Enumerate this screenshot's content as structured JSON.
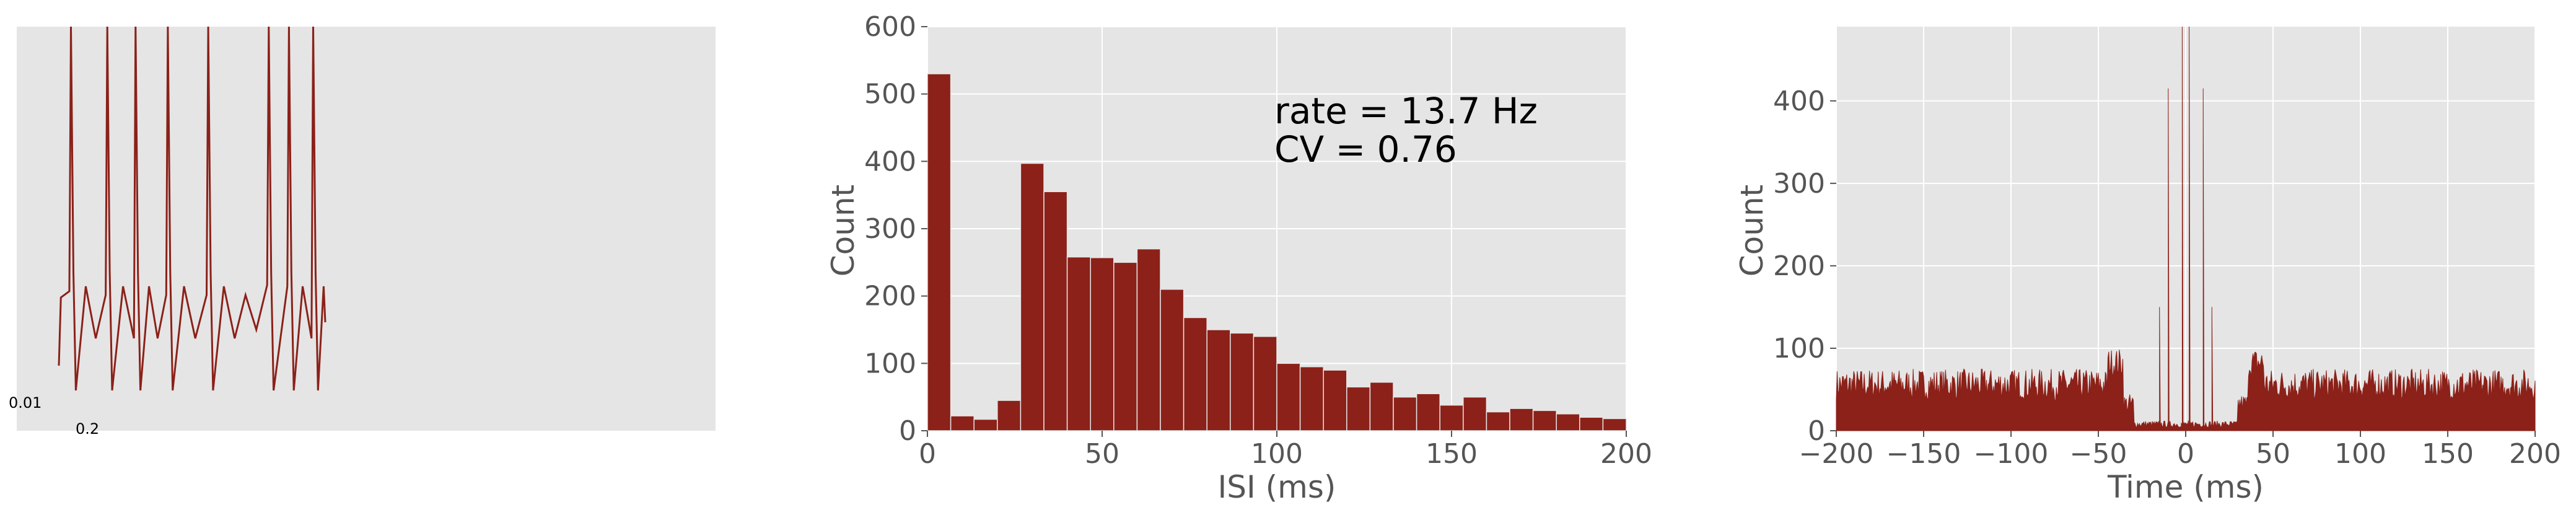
{
  "colors": {
    "plot_background": "#e5e5e5",
    "bar": "#8b2119",
    "grid": "#ffffff",
    "text": "#555555"
  },
  "chart_data": [
    {
      "type": "line",
      "title": "",
      "xlabel": "",
      "ylabel": "",
      "grid": false,
      "scale_bar": {
        "vertical": "0.01",
        "horizontal": "0.2"
      },
      "description_values": {
        "spike_times": [
          0.03,
          0.12,
          0.19,
          0.27,
          0.37,
          0.52,
          0.57,
          0.63
        ],
        "x_end": 0.66
      }
    },
    {
      "type": "bar",
      "title": "",
      "xlabel": "ISI (ms)",
      "ylabel": "Count",
      "xlim": [
        0,
        200
      ],
      "ylim": [
        0,
        600
      ],
      "xticks": [
        "0",
        "50",
        "100",
        "150",
        "200"
      ],
      "yticks": [
        "0",
        "100",
        "200",
        "300",
        "400",
        "500",
        "600"
      ],
      "grid": true,
      "bin_width": 6.667,
      "bin_starts": [
        0,
        6.667,
        13.333,
        20,
        26.667,
        33.333,
        40,
        46.667,
        53.333,
        60,
        66.667,
        73.333,
        80,
        86.667,
        93.333,
        100,
        106.667,
        113.333,
        120,
        126.667,
        133.333,
        140,
        146.667,
        153.333,
        160,
        166.667,
        173.333,
        180,
        186.667,
        193.333
      ],
      "values": [
        530,
        22,
        17,
        45,
        397,
        355,
        258,
        257,
        250,
        270,
        210,
        168,
        150,
        145,
        140,
        100,
        95,
        90,
        65,
        72,
        50,
        55,
        38,
        50,
        28,
        33,
        30,
        25,
        20,
        18
      ],
      "annotation": {
        "rate": "rate = 13.7 Hz",
        "cv": "CV = 0.76"
      }
    },
    {
      "type": "area",
      "title": "",
      "xlabel": "Time (ms)",
      "ylabel": "Count",
      "xlim": [
        -200,
        200
      ],
      "ylim": [
        0,
        490
      ],
      "xticks": [
        "−200",
        "−150",
        "−100",
        "−50",
        "0",
        "50",
        "100",
        "150",
        "200"
      ],
      "yticks": [
        "0",
        "100",
        "200",
        "300",
        "400"
      ],
      "grid": true,
      "description_values": {
        "baseline_count": 55,
        "trough_range_ms": [
          -33,
          33
        ],
        "central_peaks": [
          {
            "x": -15,
            "y": 150
          },
          {
            "x": -10,
            "y": 415
          },
          {
            "x": -2,
            "y": 490
          },
          {
            "x": 2,
            "y": 490
          },
          {
            "x": 10,
            "y": 415
          },
          {
            "x": 15,
            "y": 150
          }
        ]
      }
    }
  ]
}
